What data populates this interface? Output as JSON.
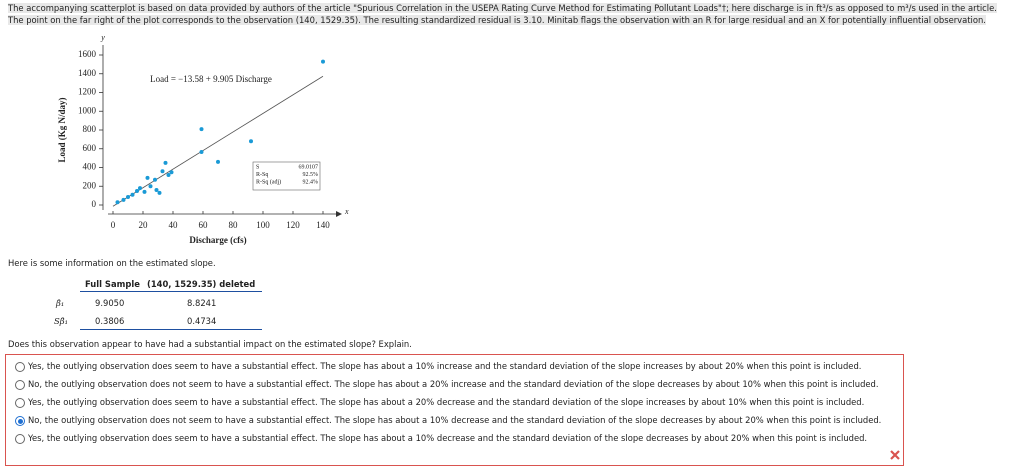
{
  "header": {
    "lines": [
      "The accompanying scatterplot is based on data provided by authors of the article \"Spurious Correlation in the USEPA Rating Curve Method for Estimating Pollutant Loads\"†; here discharge is in ft³/s as opposed to m³/s used in the article.",
      "The point on the far right of the plot corresponds to the observation (140, 1529.35). The resulting standardized residual is 3.10. Minitab flags the observation with an R for large residual and an X for potentially influential observation."
    ]
  },
  "scatterplot": {
    "y_axis_letter": "y",
    "x_axis_letter": "x",
    "ylabel": "Load (Kg N/day)",
    "xlabel": "Discharge (cfs)",
    "equation": "Load = −13.58 + 9.905 Discharge",
    "fit": {
      "intercept": -13.58,
      "slope": 9.905
    },
    "xlim": [
      0,
      140
    ],
    "ylim": [
      0,
      1600
    ],
    "xticks": [
      0,
      20,
      40,
      60,
      80,
      100,
      120,
      140
    ],
    "yticks": [
      0,
      200,
      400,
      600,
      800,
      1000,
      1200,
      1400,
      1600
    ],
    "color": "#1a9ad6",
    "x": [
      140,
      59,
      92,
      59,
      70,
      35,
      33,
      39,
      28,
      25,
      23,
      18,
      16,
      21,
      13,
      10,
      7,
      3,
      29,
      31,
      37
    ],
    "y": [
      1529.35,
      810,
      680,
      565,
      460,
      450,
      360,
      350,
      270,
      200,
      290,
      180,
      150,
      140,
      110,
      85,
      55,
      30,
      160,
      130,
      320
    ],
    "stats": [
      [
        "S",
        "69.0107"
      ],
      [
        "R-Sq",
        "92.5%"
      ],
      [
        "R-Sq (adj)",
        "92.4%"
      ]
    ]
  },
  "intro": "Here is some information on the estimated slope.",
  "table": {
    "header": [
      "Full Sample",
      "(140, 1529.35) deleted"
    ],
    "rows": [
      [
        "β̂₁",
        "9.9050",
        "8.8241"
      ],
      [
        "Sβ̂₁",
        "0.3806",
        "0.4734"
      ]
    ]
  },
  "question": "Does this observation appear to have had a substantial impact on the estimated slope? Explain.",
  "options": [
    "Yes, the outlying observation does seem to have a substantial effect. The slope has about a 10% increase and the standard deviation of the slope increases by about 20% when this point is included.",
    "No, the outlying observation does not seem to have a substantial effect. The slope has about a 20% increase and the standard deviation of the slope decreases by about 10% when this point is included.",
    "Yes, the outlying observation does seem to have a substantial effect. The slope has about a 20% decrease and the standard deviation of the slope increases by about 10% when this point is included.",
    "No, the outlying observation does not seem to have a substantial effect. The slope has about a 10% decrease and the standard deviation of the slope decreases by about 20% when this point is included.",
    "Yes, the outlying observation does seem to have a substantial effect. The slope has about a 10% decrease and the standard deviation of the slope decreases by about 20% when this point is included."
  ],
  "selected": 3
}
